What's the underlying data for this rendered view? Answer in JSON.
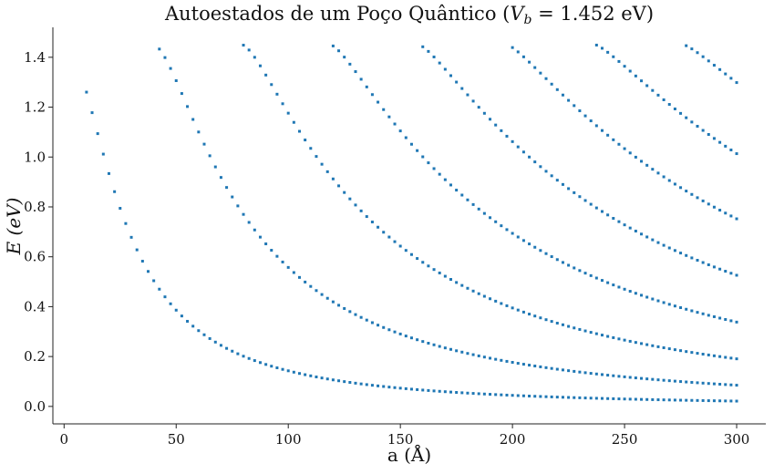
{
  "chart_data": {
    "type": "scatter",
    "title": "Autoestados de um Poço Quântico (V_b = 1.452 eV)",
    "title_parts": {
      "prefix": "Autoestados de um Poço Quântico (",
      "var": "V",
      "sub": "b",
      "suffix": " = 1.452 eV)"
    },
    "xlabel": "a (Å)",
    "ylabel": "E (eV)",
    "xlim": [
      -5,
      313
    ],
    "ylim": [
      -0.07,
      1.52
    ],
    "xticks": [
      0,
      50,
      100,
      150,
      200,
      250,
      300
    ],
    "yticks": [
      0.0,
      0.2,
      0.4,
      0.6,
      0.8,
      1.0,
      1.2,
      1.4
    ],
    "ytick_labels": [
      "0.0",
      "0.2",
      "0.4",
      "0.6",
      "0.8",
      "1.0",
      "1.2",
      "1.4"
    ],
    "grid": false,
    "legend": "none",
    "marker_color": "#1f77b4",
    "x_start": 10,
    "x_end": 300,
    "x_step": 2.5,
    "y_max": 1.452,
    "model": "finite square well, effective mass 0.067 m0, barrier 1.452 eV"
  }
}
